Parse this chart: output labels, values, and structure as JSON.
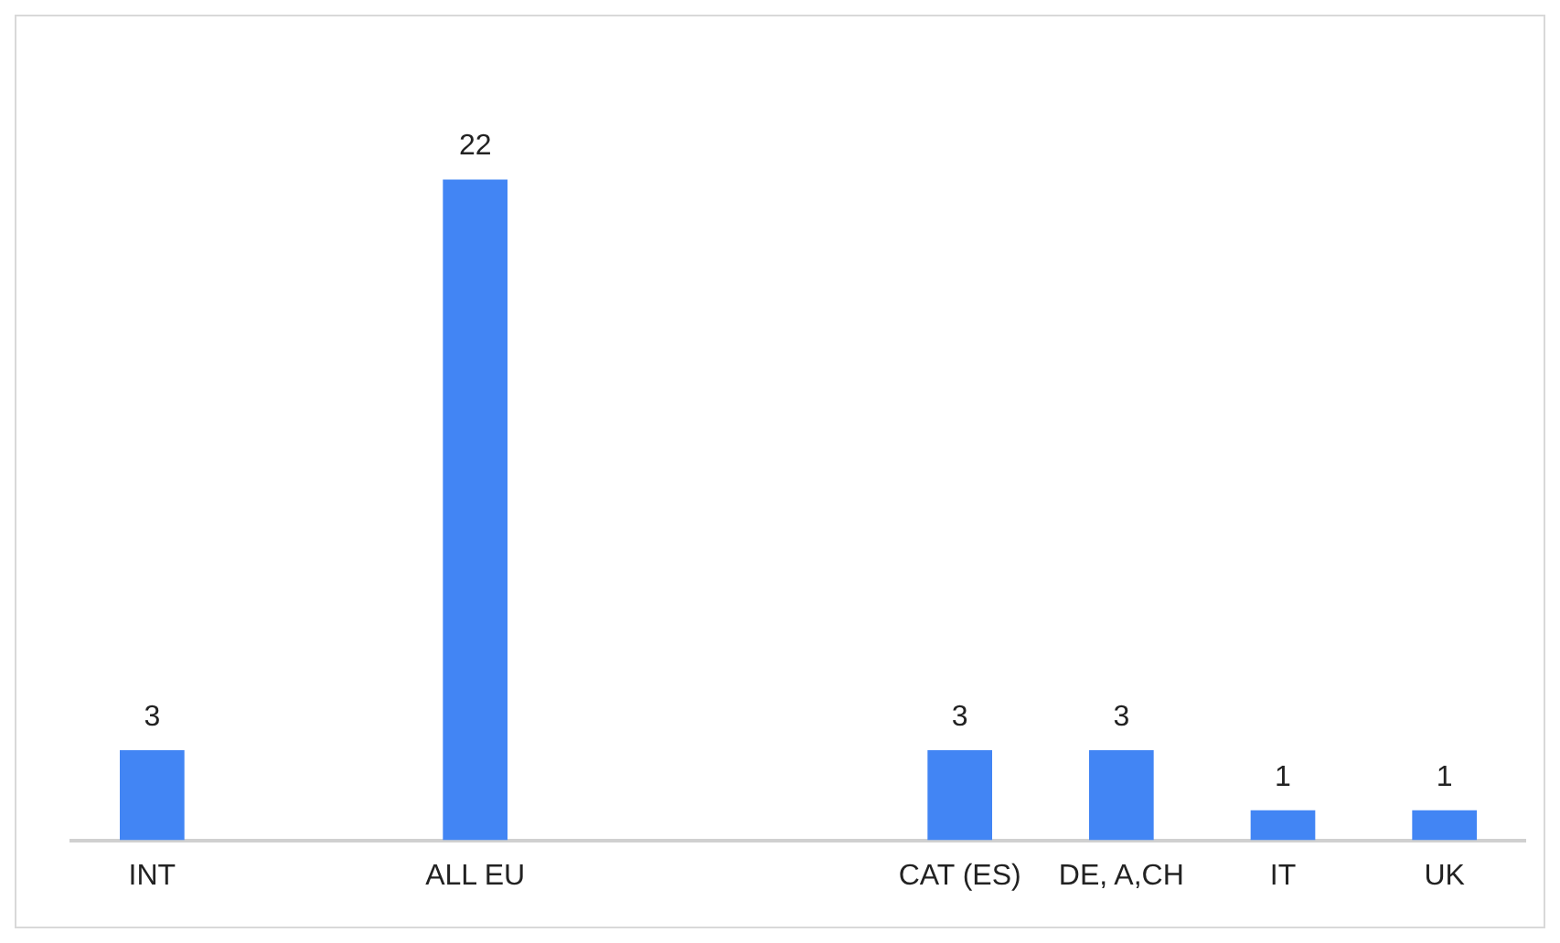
{
  "chart_data": {
    "type": "bar",
    "categories": [
      "INT",
      null,
      "ALL EU",
      null,
      null,
      "CAT (ES)",
      "DE, A,CH",
      "IT",
      "UK"
    ],
    "values": [
      3,
      null,
      22,
      null,
      null,
      3,
      3,
      1,
      1
    ],
    "color": "#4285f4",
    "data_labels": true,
    "grid": false,
    "legend": false,
    "tick_labels": "x"
  }
}
